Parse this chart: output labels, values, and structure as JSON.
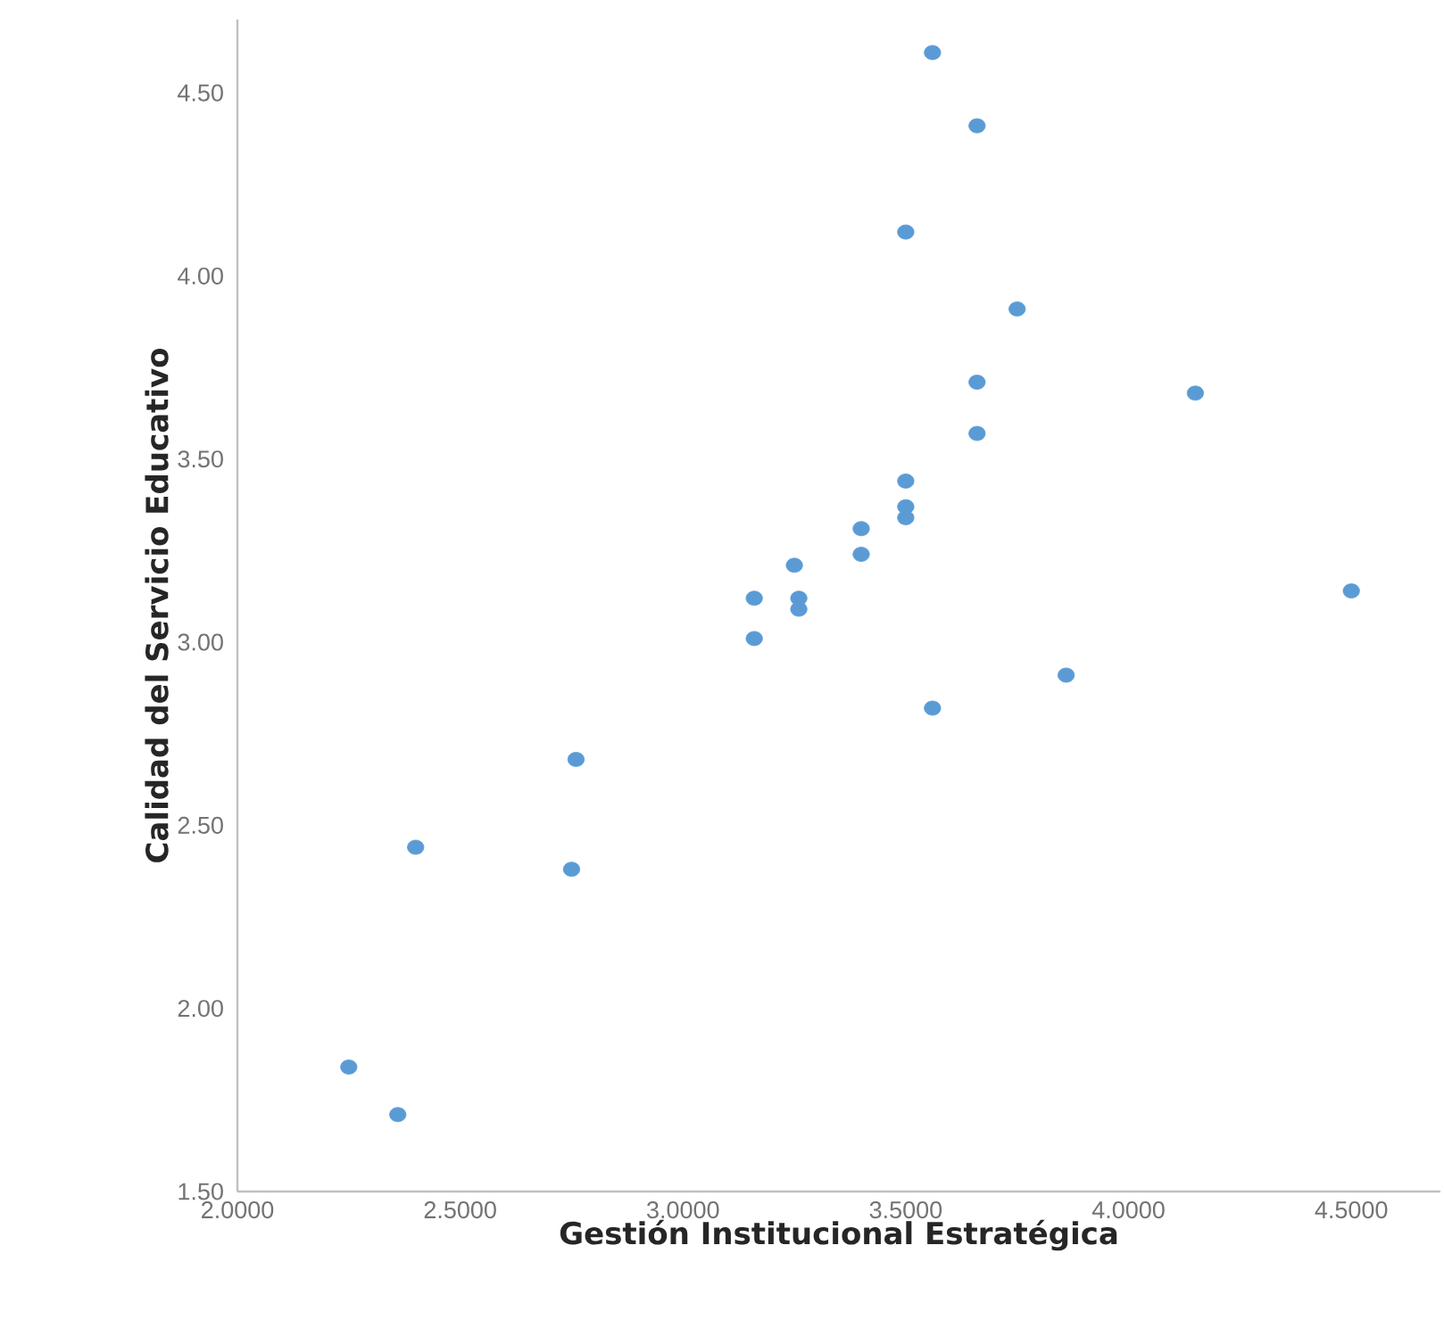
{
  "chart_data": {
    "type": "scatter",
    "xlabel": "Gestión  Institucional  Estratégica",
    "ylabel": "Calidad  del  Servicio  Educativo",
    "x": [
      3.56,
      3.66,
      3.5,
      3.75,
      3.66,
      4.15,
      3.66,
      3.5,
      3.5,
      3.5,
      3.4,
      3.4,
      3.25,
      4.5,
      3.16,
      3.26,
      3.26,
      3.16,
      3.56,
      3.86,
      2.76,
      2.4,
      2.75,
      2.25,
      2.36
    ],
    "values": [
      4.61,
      4.41,
      4.12,
      3.91,
      3.71,
      3.68,
      3.57,
      3.44,
      3.37,
      3.34,
      3.31,
      3.24,
      3.21,
      3.14,
      3.12,
      3.12,
      3.09,
      3.01,
      2.82,
      2.91,
      2.68,
      2.44,
      2.38,
      1.84,
      1.71
    ],
    "color": "#5b9bd5",
    "xlim": [
      2,
      4.7
    ],
    "ylim": [
      1.5,
      4.7
    ],
    "xticks": [
      {
        "value": 2,
        "label": "2.0000"
      },
      {
        "value": 2.5,
        "label": "2.5000"
      },
      {
        "value": 3,
        "label": "3.0000"
      },
      {
        "value": 3.5,
        "label": "3.5000"
      },
      {
        "value": 4,
        "label": "4.0000"
      },
      {
        "value": 4.5,
        "label": "4.5000"
      }
    ],
    "yticks": [
      {
        "value": 1.5,
        "label": "1.50"
      },
      {
        "value": 2,
        "label": "2.00"
      },
      {
        "value": 2.5,
        "label": "2.50"
      },
      {
        "value": 3,
        "label": "3.00"
      },
      {
        "value": 3.5,
        "label": "3.50"
      },
      {
        "value": 4,
        "label": "4.00"
      },
      {
        "value": 4.5,
        "label": "4.50"
      }
    ]
  }
}
